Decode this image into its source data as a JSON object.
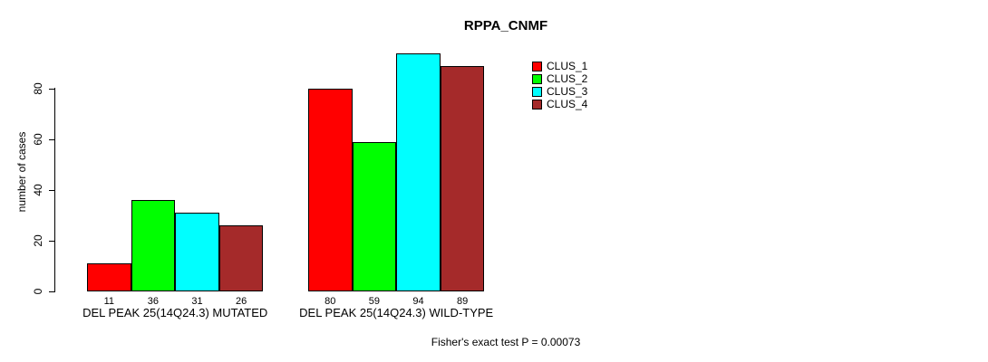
{
  "chart_data": {
    "type": "bar",
    "title": "RPPA_CNMF",
    "xlabel": "",
    "ylabel": "number of cases",
    "ylim": [
      0,
      94
    ],
    "yticks": [
      0,
      20,
      40,
      60,
      80
    ],
    "grid": false,
    "legend_position": "top-right",
    "categories": [
      "DEL PEAK 25(14Q24.3) MUTATED",
      "DEL PEAK 25(14Q24.3) WILD-TYPE"
    ],
    "series": [
      {
        "name": "CLUS_1",
        "color": "#FF0000",
        "values": [
          11,
          80
        ]
      },
      {
        "name": "CLUS_2",
        "color": "#00FF00",
        "values": [
          36,
          59
        ]
      },
      {
        "name": "CLUS_3",
        "color": "#00FFFF",
        "values": [
          31,
          94
        ]
      },
      {
        "name": "CLUS_4",
        "color": "#A52A2A",
        "values": [
          26,
          89
        ]
      }
    ],
    "bar_labels_shown": true,
    "annotation": "Fisher's exact test P = 0.00073"
  }
}
